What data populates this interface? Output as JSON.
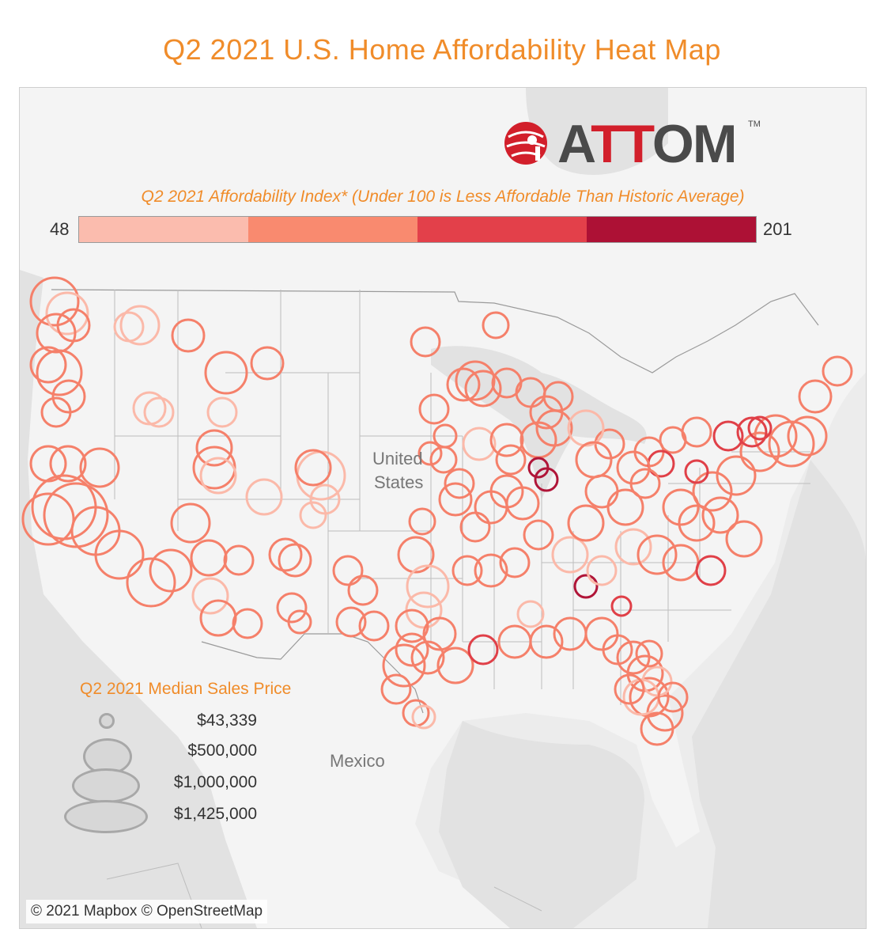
{
  "title": "Q2 2021 U.S. Home Affordability Heat Map",
  "brand": {
    "logo_text_a": "A",
    "logo_text_tt": "TT",
    "logo_text_om": "OM",
    "tm": "TM",
    "logo_colors": [
      "#d21f2b",
      "#4a4a4a"
    ]
  },
  "index_legend": {
    "title": "Q2 2021 Affordability Index* (Under 100 is Less Affordable Than Historic Average)",
    "min": "48",
    "max": "201",
    "colors": [
      "#fbbcae",
      "#f98a6f",
      "#e3404a",
      "#ad1135"
    ]
  },
  "map_labels": {
    "country_us_1": "United",
    "country_us_2": "States",
    "country_mx": "Mexico"
  },
  "price_legend": {
    "title": "Q2 2021 Median Sales Price",
    "items": [
      "$43,339",
      "$500,000",
      "$1,000,000",
      "$1,425,000"
    ]
  },
  "attribution": "© 2021 Mapbox © OpenStreetMap",
  "map_data": {
    "markers_note_visible": false,
    "markers": [
      [
        68,
        380,
        30,
        1
      ],
      [
        84,
        395,
        26,
        0
      ],
      [
        70,
        420,
        24,
        1
      ],
      [
        92,
        410,
        20,
        1
      ],
      [
        60,
        460,
        22,
        1
      ],
      [
        74,
        470,
        28,
        1
      ],
      [
        86,
        500,
        20,
        1
      ],
      [
        70,
        520,
        18,
        1
      ],
      [
        176,
        410,
        24,
        0
      ],
      [
        162,
        412,
        18,
        0
      ],
      [
        237,
        423,
        20,
        1
      ],
      [
        285,
        470,
        26,
        1
      ],
      [
        337,
        458,
        20,
        1
      ],
      [
        188,
        515,
        20,
        0
      ],
      [
        200,
        520,
        18,
        0
      ],
      [
        280,
        520,
        18,
        0
      ],
      [
        270,
        565,
        22,
        1
      ],
      [
        270,
        590,
        26,
        1
      ],
      [
        275,
        600,
        22,
        0
      ],
      [
        333,
        627,
        22,
        0
      ],
      [
        405,
        600,
        30,
        0
      ],
      [
        395,
        590,
        22,
        1
      ],
      [
        410,
        630,
        18,
        0
      ],
      [
        395,
        650,
        16,
        0
      ],
      [
        60,
        585,
        22,
        1
      ],
      [
        85,
        585,
        22,
        1
      ],
      [
        125,
        590,
        24,
        1
      ],
      [
        80,
        640,
        40,
        1
      ],
      [
        95,
        650,
        40,
        1
      ],
      [
        60,
        655,
        32,
        1
      ],
      [
        120,
        670,
        30,
        1
      ],
      [
        150,
        700,
        30,
        1
      ],
      [
        190,
        735,
        30,
        1
      ],
      [
        215,
        720,
        26,
        1
      ],
      [
        240,
        660,
        24,
        1
      ],
      [
        263,
        704,
        22,
        1
      ],
      [
        265,
        752,
        22,
        0
      ],
      [
        275,
        780,
        22,
        1
      ],
      [
        312,
        787,
        18,
        1
      ],
      [
        301,
        707,
        18,
        1
      ],
      [
        360,
        700,
        20,
        1
      ],
      [
        372,
        707,
        20,
        1
      ],
      [
        368,
        767,
        18,
        1
      ],
      [
        378,
        785,
        14,
        1
      ],
      [
        439,
        720,
        18,
        1
      ],
      [
        458,
        745,
        18,
        1
      ],
      [
        443,
        785,
        18,
        1
      ],
      [
        472,
        790,
        18,
        1
      ],
      [
        537,
        431,
        18,
        1
      ],
      [
        626,
        410,
        16,
        1
      ],
      [
        548,
        516,
        18,
        1
      ],
      [
        562,
        550,
        14,
        1
      ],
      [
        543,
        572,
        14,
        1
      ],
      [
        560,
        580,
        16,
        1
      ],
      [
        605,
        560,
        20,
        0
      ],
      [
        600,
        480,
        24,
        1
      ],
      [
        610,
        490,
        22,
        1
      ],
      [
        585,
        485,
        20,
        1
      ],
      [
        640,
        483,
        18,
        1
      ],
      [
        670,
        495,
        18,
        1
      ],
      [
        705,
        500,
        18,
        1
      ],
      [
        690,
        520,
        20,
        1
      ],
      [
        700,
        540,
        22,
        1
      ],
      [
        680,
        555,
        22,
        1
      ],
      [
        640,
        555,
        20,
        1
      ],
      [
        645,
        580,
        18,
        1
      ],
      [
        690,
        605,
        14,
        3
      ],
      [
        680,
        590,
        12,
        3
      ],
      [
        660,
        635,
        20,
        1
      ],
      [
        620,
        640,
        20,
        1
      ],
      [
        575,
        630,
        20,
        1
      ],
      [
        580,
        610,
        18,
        1
      ],
      [
        533,
        658,
        16,
        1
      ],
      [
        600,
        665,
        18,
        1
      ],
      [
        680,
        675,
        18,
        1
      ],
      [
        650,
        710,
        18,
        1
      ],
      [
        620,
        720,
        20,
        1
      ],
      [
        590,
        720,
        18,
        1
      ],
      [
        525,
        700,
        22,
        1
      ],
      [
        540,
        740,
        26,
        0
      ],
      [
        535,
        770,
        22,
        0
      ],
      [
        520,
        790,
        20,
        1
      ],
      [
        555,
        800,
        20,
        1
      ],
      [
        520,
        820,
        20,
        1
      ],
      [
        510,
        840,
        26,
        1
      ],
      [
        540,
        830,
        20,
        1
      ],
      [
        575,
        840,
        22,
        1
      ],
      [
        500,
        870,
        18,
        1
      ],
      [
        525,
        900,
        16,
        1
      ],
      [
        535,
        905,
        14,
        0
      ],
      [
        610,
        820,
        18,
        2
      ],
      [
        650,
        810,
        20,
        1
      ],
      [
        690,
        810,
        20,
        1
      ],
      [
        720,
        800,
        20,
        1
      ],
      [
        760,
        800,
        20,
        1
      ],
      [
        780,
        820,
        18,
        1
      ],
      [
        670,
        775,
        16,
        0
      ],
      [
        720,
        700,
        22,
        0
      ],
      [
        740,
        740,
        14,
        3
      ],
      [
        785,
        765,
        12,
        2
      ],
      [
        760,
        720,
        18,
        0
      ],
      [
        800,
        690,
        22,
        0
      ],
      [
        830,
        700,
        24,
        1
      ],
      [
        860,
        710,
        22,
        1
      ],
      [
        898,
        720,
        18,
        2
      ],
      [
        880,
        660,
        22,
        1
      ],
      [
        860,
        640,
        22,
        1
      ],
      [
        900,
        620,
        24,
        1
      ],
      [
        930,
        600,
        24,
        1
      ],
      [
        960,
        570,
        24,
        1
      ],
      [
        980,
        550,
        26,
        1
      ],
      [
        1000,
        560,
        28,
        1
      ],
      [
        1020,
        550,
        24,
        1
      ],
      [
        1030,
        500,
        20,
        1
      ],
      [
        1058,
        468,
        18,
        1
      ],
      [
        950,
        545,
        18,
        2
      ],
      [
        960,
        540,
        14,
        2
      ],
      [
        920,
        550,
        18,
        2
      ],
      [
        880,
        545,
        18,
        1
      ],
      [
        850,
        555,
        16,
        1
      ],
      [
        820,
        570,
        18,
        1
      ],
      [
        835,
        585,
        16,
        2
      ],
      [
        800,
        590,
        20,
        1
      ],
      [
        770,
        560,
        18,
        1
      ],
      [
        740,
        540,
        22,
        0
      ],
      [
        750,
        580,
        22,
        1
      ],
      [
        760,
        620,
        20,
        1
      ],
      [
        790,
        640,
        22,
        1
      ],
      [
        740,
        660,
        22,
        1
      ],
      [
        815,
        610,
        18,
        1
      ],
      [
        880,
        595,
        14,
        2
      ],
      [
        910,
        650,
        22,
        1
      ],
      [
        940,
        680,
        22,
        1
      ],
      [
        800,
        830,
        20,
        1
      ],
      [
        815,
        850,
        22,
        1
      ],
      [
        820,
        880,
        24,
        1
      ],
      [
        840,
        900,
        22,
        1
      ],
      [
        810,
        880,
        22,
        0
      ],
      [
        830,
        860,
        18,
        0
      ],
      [
        850,
        880,
        18,
        1
      ],
      [
        830,
        920,
        20,
        1
      ],
      [
        795,
        870,
        18,
        1
      ],
      [
        820,
        825,
        16,
        1
      ],
      [
        640,
        620,
        20,
        1
      ]
    ]
  }
}
